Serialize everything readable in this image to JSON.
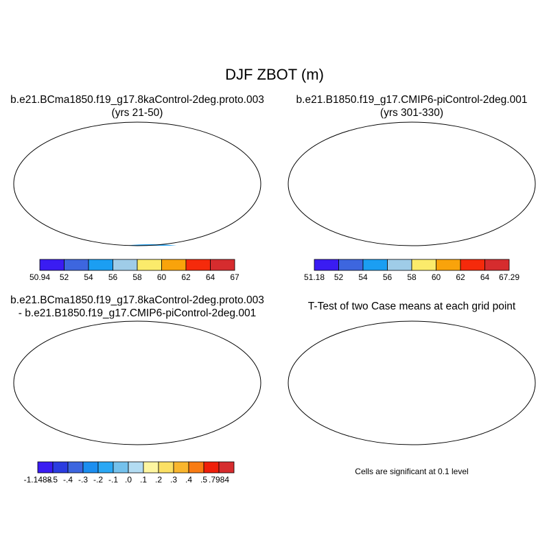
{
  "title": "DJF ZBOT (m)",
  "colors": {
    "seq8": [
      "#3a1cf2",
      "#3d66df",
      "#1b9ef2",
      "#9fcce8",
      "#fbeb6b",
      "#f9a30b",
      "#f52a0b",
      "#d62c2e"
    ],
    "div12": [
      "#3a1cf2",
      "#2b3ce0",
      "#3d66df",
      "#1b8ef0",
      "#2ba8f5",
      "#74c1ec",
      "#b3dcf2",
      "#fdf5a0",
      "#fbe064",
      "#f9b62e",
      "#f97c13",
      "#ef1f0a",
      "#d62c2e"
    ],
    "sig": "#f20c0c"
  },
  "chart_data": [
    {
      "type": "heatmap",
      "panel": "top-left",
      "title": "b.e21.BCma1850.f19_g17.8kaControl-2deg.proto.003",
      "subtitle": "(yrs 21-50)",
      "colorbar_labels": [
        "50.94",
        "52",
        "54",
        "56",
        "58",
        "60",
        "62",
        "64",
        "67"
      ],
      "range": [
        50.94,
        67
      ]
    },
    {
      "type": "heatmap",
      "panel": "top-right",
      "title": "b.e21.B1850.f19_g17.CMIP6-piControl-2deg.001",
      "subtitle": "(yrs 301-330)",
      "colorbar_labels": [
        "51.18",
        "52",
        "54",
        "56",
        "58",
        "60",
        "62",
        "64",
        "67.29"
      ],
      "range": [
        51.18,
        67.29
      ]
    },
    {
      "type": "heatmap",
      "panel": "bottom-left",
      "title": "b.e21.BCma1850.f19_g17.8kaControl-2deg.proto.003",
      "subtitle": "- b.e21.B1850.f19_g17.CMIP6-piControl-2deg.001",
      "colorbar_labels": [
        "-1.1488",
        "-.5",
        "-.4",
        "-.3",
        "-.2",
        "-.1",
        ".0",
        ".1",
        ".2",
        ".3",
        ".4",
        ".5",
        ".7984"
      ],
      "range": [
        -1.1488,
        0.7984
      ]
    },
    {
      "type": "heatmap",
      "panel": "bottom-right",
      "title": "T-Test of two Case means at each grid point",
      "note": "Cells are significant at 0.1 level"
    }
  ]
}
